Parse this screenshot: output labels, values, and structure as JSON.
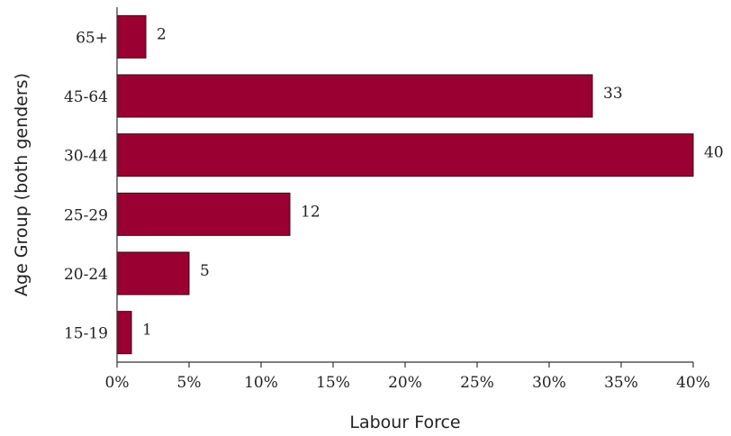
{
  "chart_data": {
    "type": "bar",
    "orientation": "horizontal",
    "categories": [
      "65+",
      "45-64",
      "30-44",
      "25-29",
      "20-24",
      "15-19"
    ],
    "values": [
      2,
      33,
      40,
      12,
      5,
      1
    ],
    "data_labels": [
      "2",
      "33",
      "40",
      "12",
      "5",
      "1"
    ],
    "xlabel": "Labour Force",
    "ylabel": "Age Group (both genders)",
    "xlim": [
      0,
      40
    ],
    "x_ticks": [
      0,
      5,
      10,
      15,
      20,
      25,
      30,
      35,
      40
    ],
    "x_tick_labels": [
      "0%",
      "5%",
      "10%",
      "15%",
      "20%",
      "25%",
      "30%",
      "35%",
      "40%"
    ],
    "grid": false,
    "bar_color": "#9a0032"
  }
}
